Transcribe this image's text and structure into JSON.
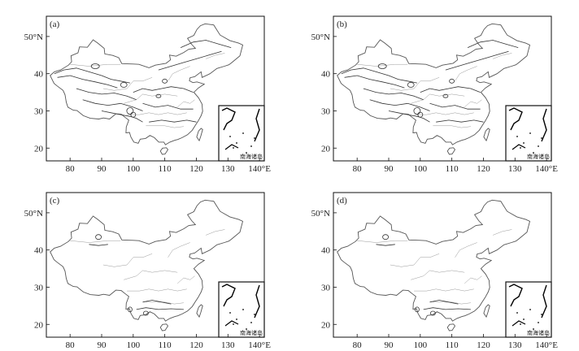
{
  "figure": {
    "panels": [
      {
        "id": "a",
        "label": "(a)",
        "x_ticks": [
          "80",
          "90",
          "100",
          "110",
          "120",
          "130",
          "140°E"
        ],
        "y_ticks": [
          "50°N",
          "40",
          "30",
          "20"
        ],
        "inset_caption": "南海诸岛",
        "contour_detail": "high"
      },
      {
        "id": "b",
        "label": "(b)",
        "x_ticks": [
          "80",
          "90",
          "100",
          "110",
          "120",
          "130",
          "140°E"
        ],
        "y_ticks": [
          "50°N",
          "40",
          "30",
          "20"
        ],
        "inset_caption": "南海诸岛",
        "contour_detail": "high"
      },
      {
        "id": "c",
        "label": "(c)",
        "x_ticks": [
          "80",
          "90",
          "100",
          "110",
          "120",
          "130",
          "140°E"
        ],
        "y_ticks": [
          "50°N",
          "40",
          "30",
          "20"
        ],
        "inset_caption": "南海诸岛",
        "contour_detail": "low"
      },
      {
        "id": "d",
        "label": "(d)",
        "x_ticks": [
          "80",
          "90",
          "100",
          "110",
          "120",
          "130",
          "140°E"
        ],
        "y_ticks": [
          "50°N",
          "40",
          "30",
          "20"
        ],
        "inset_caption": "南海诸岛",
        "contour_detail": "low"
      }
    ],
    "map": {
      "lon_range": [
        73,
        141
      ],
      "lat_range": [
        17,
        55
      ],
      "outline_color": "#555555",
      "contour_color": "#333333",
      "frame_color": "#111111"
    }
  }
}
